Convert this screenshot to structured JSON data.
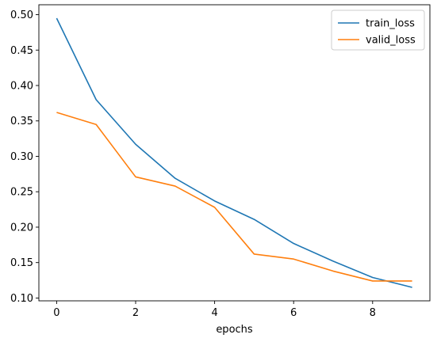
{
  "chart_data": {
    "type": "line",
    "x": [
      0,
      1,
      2,
      3,
      4,
      5,
      6,
      7,
      8,
      9
    ],
    "series": [
      {
        "name": "train_loss",
        "color": "#1f77b4",
        "values": [
          0.495,
          0.38,
          0.317,
          0.269,
          0.237,
          0.211,
          0.177,
          0.152,
          0.129,
          0.115
        ]
      },
      {
        "name": "valid_loss",
        "color": "#ff7f0e",
        "values": [
          0.362,
          0.345,
          0.271,
          0.258,
          0.228,
          0.162,
          0.155,
          0.138,
          0.124,
          0.124
        ]
      }
    ],
    "xlabel": "epochs",
    "ylabel": "",
    "title": "",
    "xlim": [
      -0.45,
      9.45
    ],
    "ylim": [
      0.096,
      0.514
    ],
    "xticks": [
      0,
      2,
      4,
      6,
      8
    ],
    "yticks": [
      0.1,
      0.15,
      0.2,
      0.25,
      0.3,
      0.35,
      0.4,
      0.45,
      0.5
    ],
    "xtick_labels": [
      "0",
      "2",
      "4",
      "6",
      "8"
    ],
    "ytick_labels": [
      "0.10",
      "0.15",
      "0.20",
      "0.25",
      "0.30",
      "0.35",
      "0.40",
      "0.45",
      "0.50"
    ],
    "grid": false,
    "legend_position": "top-right"
  }
}
